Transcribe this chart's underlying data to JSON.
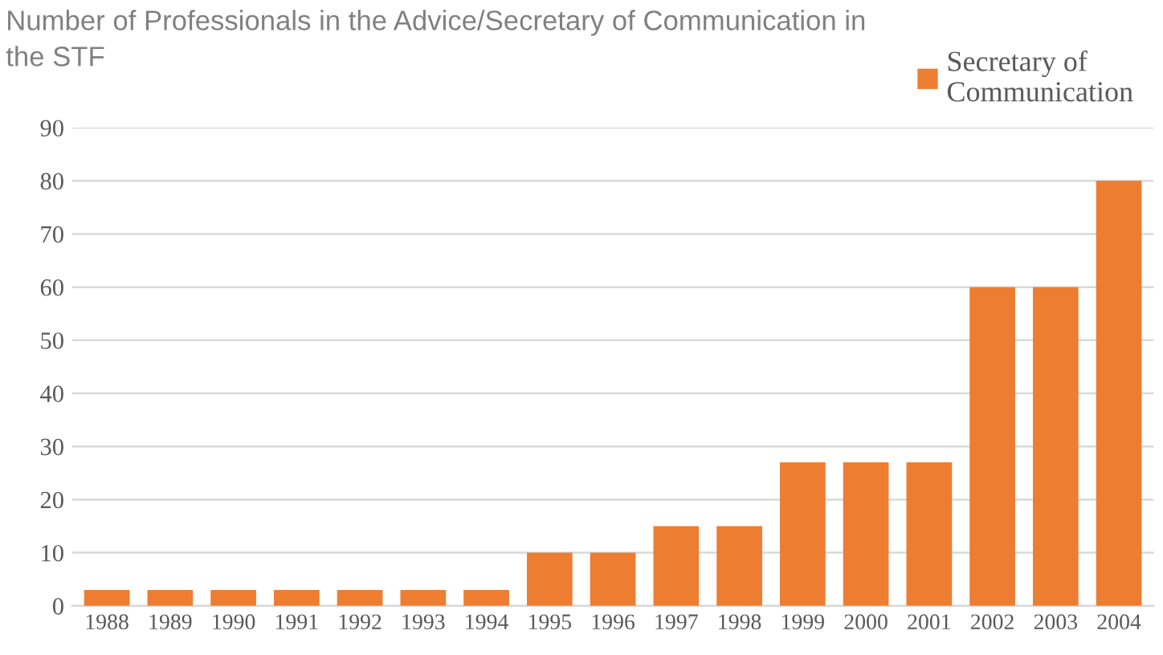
{
  "chart_data": {
    "type": "bar",
    "title": "Number of Professionals in the Advice/Secretary of Communication in\nthe STF",
    "categories": [
      "1988",
      "1989",
      "1990",
      "1991",
      "1992",
      "1993",
      "1994",
      "1995",
      "1996",
      "1997",
      "1998",
      "1999",
      "2000",
      "2001",
      "2002",
      "2003",
      "2004"
    ],
    "series": [
      {
        "name": "Secretary of\nCommunication",
        "color": "#ed7d31",
        "values": [
          3,
          3,
          3,
          3,
          3,
          3,
          3,
          10,
          10,
          15,
          15,
          27,
          27,
          27,
          60,
          60,
          80
        ]
      }
    ],
    "ylim": [
      0,
      90
    ],
    "yticks": [
      0,
      10,
      20,
      30,
      40,
      50,
      60,
      70,
      80,
      90
    ],
    "grid": "y",
    "legend": "top right"
  }
}
